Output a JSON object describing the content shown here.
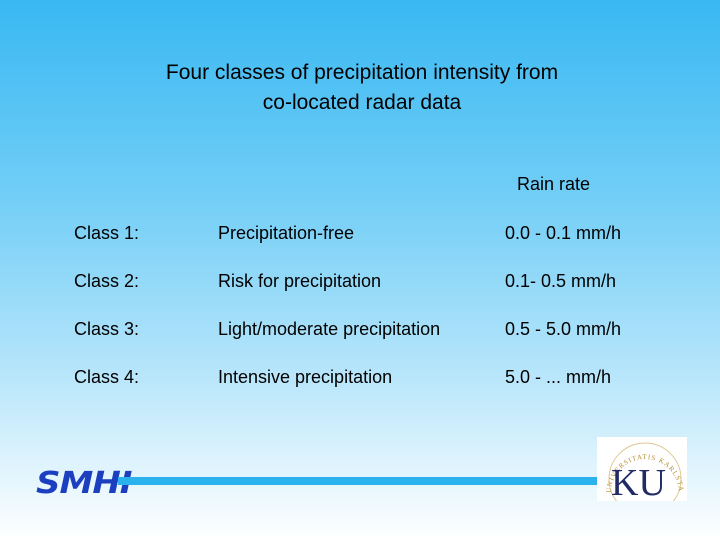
{
  "title": {
    "line1": "Four classes of precipitation intensity from",
    "line2": "co-located radar data"
  },
  "table": {
    "rain_rate_header": "Rain rate",
    "rows": [
      {
        "class": "Class 1:",
        "description": "Precipitation-free",
        "rate": "0.0 - 0.1 mm/h"
      },
      {
        "class": "Class 2:",
        "description": "Risk for precipitation",
        "rate": "0.1- 0.5 mm/h"
      },
      {
        "class": "Class 3:",
        "description": "Light/moderate precipitation",
        "rate": "0.5 - 5.0 mm/h"
      },
      {
        "class": "Class 4:",
        "description": "Intensive precipitation",
        "rate": "5.0 - ... mm/h"
      }
    ]
  },
  "logos": {
    "smhi": "SMHI",
    "ku": "KU",
    "ku_seal_text": "UNIVERSITATIS KARLSTAD"
  },
  "colors": {
    "background_top": "#39b8f2",
    "background_bottom": "#ffffff",
    "footer_line": "#2ab2ef",
    "smhi_blue": "#1b3fbf"
  }
}
